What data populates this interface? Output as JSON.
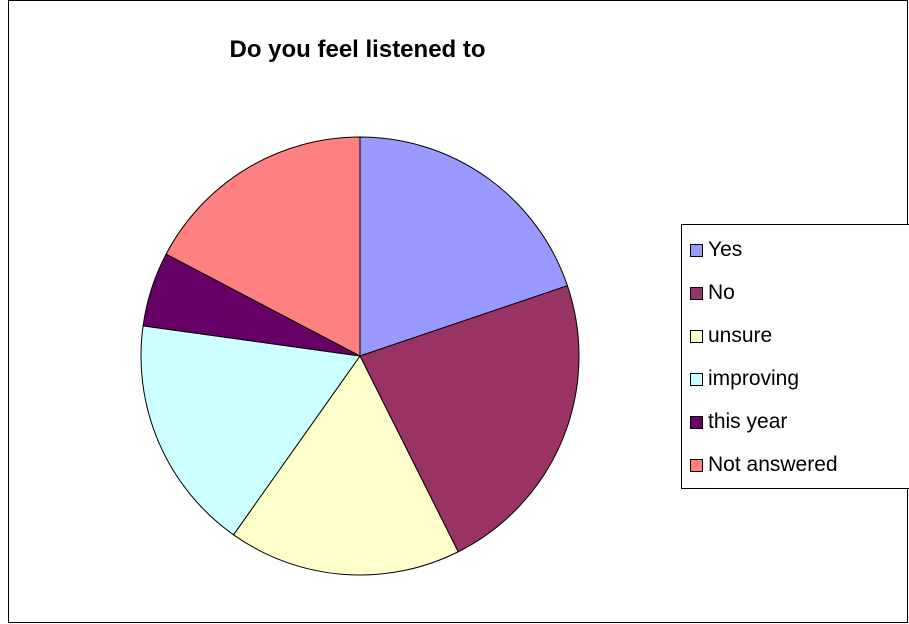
{
  "chart_data": {
    "type": "pie",
    "title": "Do you feel listened to",
    "slices": [
      {
        "label": "Yes",
        "value": 19.8,
        "color": "#9999FF"
      },
      {
        "label": "No",
        "value": 22.8,
        "color": "#993366"
      },
      {
        "label": "unsure",
        "value": 17.2,
        "color": "#FFFFCC"
      },
      {
        "label": "improving",
        "value": 17.4,
        "color": "#CCFFFF"
      },
      {
        "label": "this year",
        "value": 5.5,
        "color": "#660066"
      },
      {
        "label": "Not answered",
        "value": 17.3,
        "color": "#FF8080"
      }
    ],
    "legend_position": "right"
  }
}
